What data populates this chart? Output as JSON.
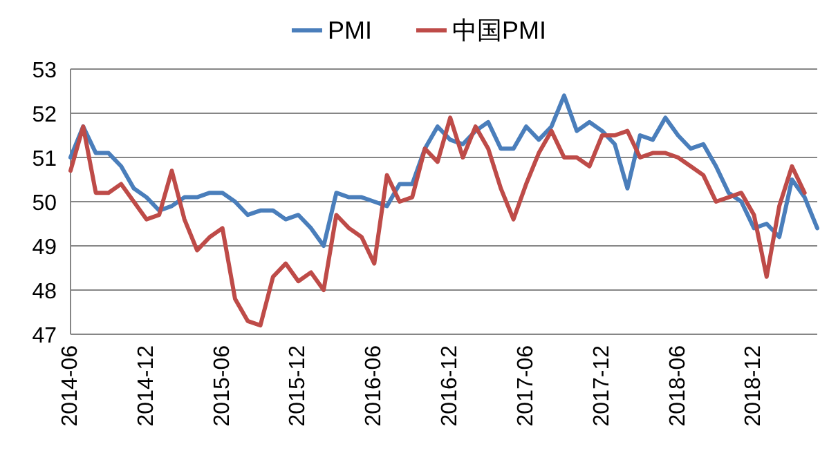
{
  "chart_data": {
    "type": "line",
    "categories": [
      "2014-06",
      null,
      null,
      null,
      null,
      null,
      "2014-12",
      null,
      null,
      null,
      null,
      null,
      "2015-06",
      null,
      null,
      null,
      null,
      null,
      "2015-12",
      null,
      null,
      null,
      null,
      null,
      "2016-06",
      null,
      null,
      null,
      null,
      null,
      "2016-12",
      null,
      null,
      null,
      null,
      null,
      "2017-06",
      null,
      null,
      null,
      null,
      null,
      "2017-12",
      null,
      null,
      null,
      null,
      null,
      "2018-06",
      null,
      null,
      null,
      null,
      null,
      "2018-12",
      null,
      null,
      null,
      null,
      null
    ],
    "series": [
      {
        "name": "PMI",
        "color": "#4a7ebb",
        "values": [
          51.0,
          51.7,
          51.1,
          51.1,
          50.8,
          50.3,
          50.1,
          49.8,
          49.9,
          50.1,
          50.1,
          50.2,
          50.2,
          50.0,
          49.7,
          49.8,
          49.8,
          49.6,
          49.7,
          49.4,
          49.0,
          50.2,
          50.1,
          50.1,
          50.0,
          49.9,
          50.4,
          50.4,
          51.2,
          51.7,
          51.4,
          51.3,
          51.6,
          51.8,
          51.2,
          51.2,
          51.7,
          51.4,
          51.7,
          52.4,
          51.6,
          51.8,
          51.6,
          51.3,
          50.3,
          51.5,
          51.4,
          51.9,
          51.5,
          51.2,
          51.3,
          50.8,
          50.2,
          50.0,
          49.4,
          49.5,
          49.2,
          50.5,
          50.1,
          49.4
        ]
      },
      {
        "name": "中国PMI",
        "color": "#be4b48",
        "values": [
          50.7,
          51.7,
          50.2,
          50.2,
          50.4,
          50.0,
          49.6,
          49.7,
          50.7,
          49.6,
          48.9,
          49.2,
          49.4,
          47.8,
          47.3,
          47.2,
          48.3,
          48.6,
          48.2,
          48.4,
          48.0,
          49.7,
          49.4,
          49.2,
          48.6,
          50.6,
          50.0,
          50.1,
          51.2,
          50.9,
          51.9,
          51.0,
          51.7,
          51.2,
          50.3,
          49.6,
          50.4,
          51.1,
          51.6,
          51.0,
          51.0,
          50.8,
          51.5,
          51.5,
          51.6,
          51.0,
          51.1,
          51.1,
          51.0,
          50.8,
          50.6,
          50.0,
          50.1,
          50.2,
          49.7,
          48.3,
          49.9,
          50.8,
          50.2,
          null
        ]
      }
    ],
    "ylim": [
      47,
      53
    ],
    "yticks": [
      47,
      48,
      49,
      50,
      51,
      52,
      53
    ],
    "grid": "y",
    "legend": "top"
  }
}
